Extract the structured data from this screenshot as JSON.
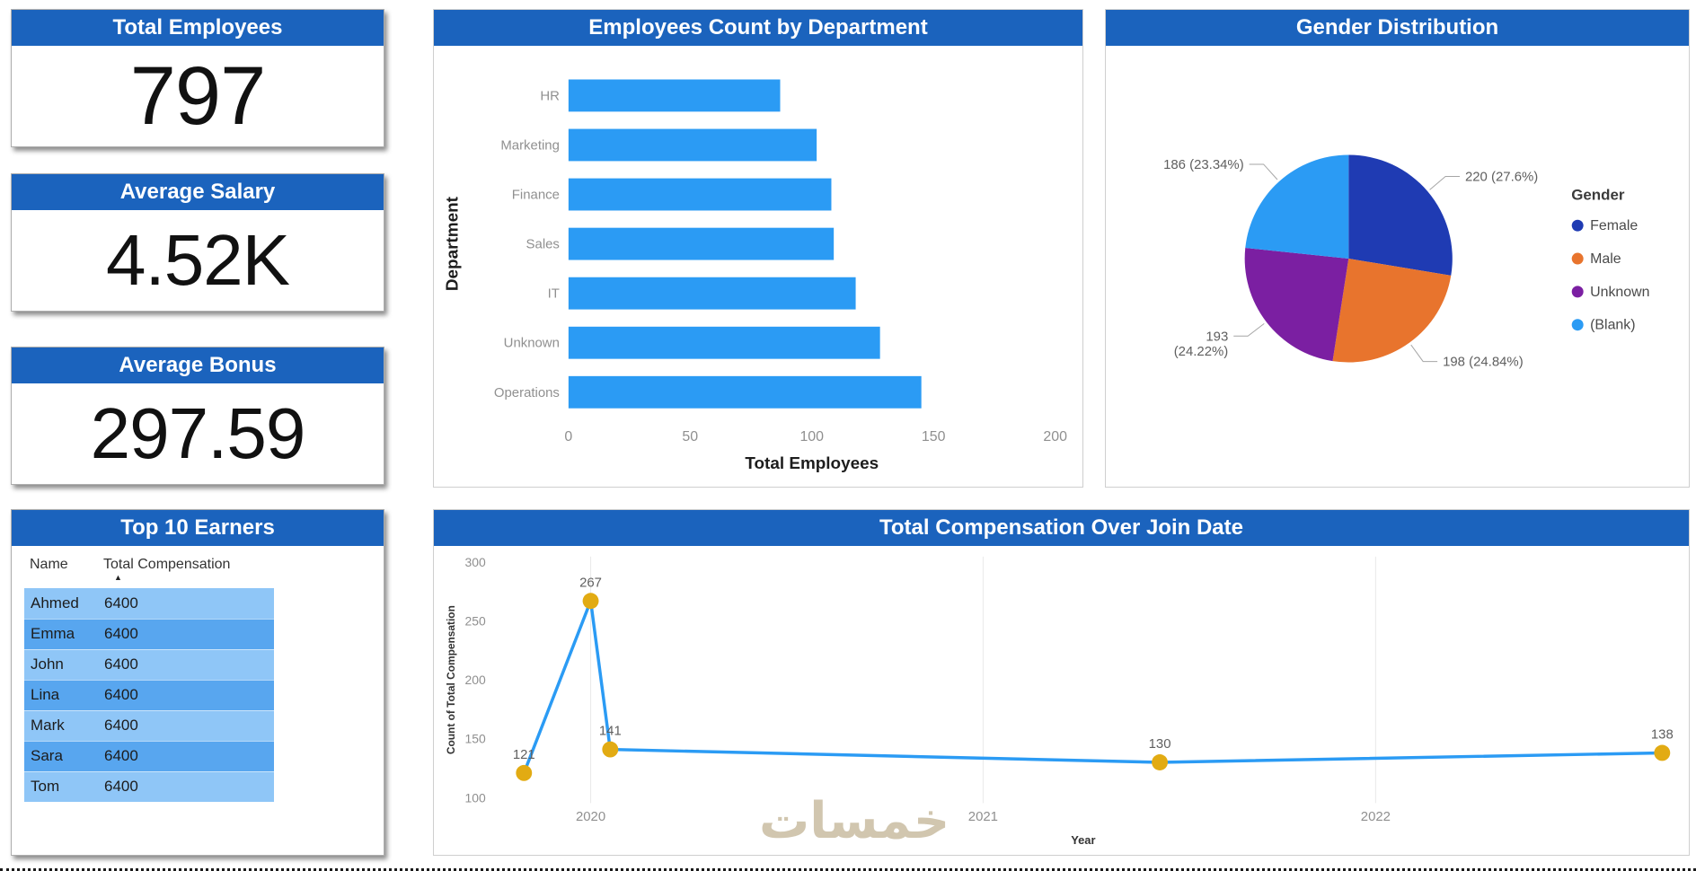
{
  "page": {
    "watermark": "خمسات"
  },
  "colors": {
    "header_bg": "#1b63bd",
    "bar_blue": "#2b9bf4",
    "pie_female": "#1f3bb3",
    "pie_male": "#e8742d",
    "pie_unknown": "#7b1fa2",
    "pie_blank": "#2b9bf4",
    "line_blue": "#2b9bf4",
    "marker_gold": "#e2ab13",
    "row_light": "#8fc6f7",
    "row_dark": "#58a6ef",
    "watermark": "#c9bda2"
  },
  "kpi_cards": [
    {
      "title": "Total Employees",
      "value": "797"
    },
    {
      "title": "Average Salary",
      "value": "4.52K"
    },
    {
      "title": "Average Bonus",
      "value": "297.59"
    }
  ],
  "top_earners": {
    "title": "Top 10 Earners",
    "columns": [
      "Name",
      "Total Compensation"
    ],
    "sort_icon": "▲",
    "rows": [
      [
        "Ahmed",
        "6400"
      ],
      [
        "Emma",
        "6400"
      ],
      [
        "John",
        "6400"
      ],
      [
        "Lina",
        "6400"
      ],
      [
        "Mark",
        "6400"
      ],
      [
        "Sara",
        "6400"
      ],
      [
        "Tom",
        "6400"
      ]
    ]
  },
  "chart_data": [
    {
      "id": "dept_bar",
      "type": "bar",
      "orientation": "horizontal",
      "title": "Employees Count by Department",
      "categories": [
        "HR",
        "Marketing",
        "Finance",
        "Sales",
        "IT",
        "Unknown",
        "Operations"
      ],
      "values": [
        87,
        102,
        108,
        109,
        118,
        128,
        145
      ],
      "xlabel": "Total Employees",
      "ylabel": "Department",
      "xlim": [
        0,
        200
      ],
      "xticks": [
        0,
        50,
        100,
        150,
        200
      ],
      "bar_color": "#2b9bf4"
    },
    {
      "id": "gender_pie",
      "type": "pie",
      "title": "Gender Distribution",
      "legend_title": "Gender",
      "legend_position": "right",
      "slices": [
        {
          "label": "Female",
          "value": 220,
          "pct": "27.6%",
          "color": "#1f3bb3",
          "callout": [
            "220 (27.6%)"
          ]
        },
        {
          "label": "Male",
          "value": 198,
          "pct": "24.84%",
          "color": "#e8742d",
          "callout": [
            "198 (24.84%)"
          ]
        },
        {
          "label": "Unknown",
          "value": 193,
          "pct": "24.22%",
          "color": "#7b1fa2",
          "callout": [
            "193",
            "(24.22%)"
          ]
        },
        {
          "label": "(Blank)",
          "value": 186,
          "pct": "23.34%",
          "color": "#2b9bf4",
          "callout": [
            "186 (23.34%)"
          ]
        }
      ]
    },
    {
      "id": "comp_line",
      "type": "line",
      "title": "Total Compensation Over Join Date",
      "xlabel": "Year",
      "ylabel": "Count of Total Compensation",
      "ylim": [
        100,
        300
      ],
      "yticks": [
        100,
        150,
        200,
        250,
        300
      ],
      "xlim": [
        2019.76,
        2022.75
      ],
      "xticks": [
        {
          "label": "2020",
          "x": 2020
        },
        {
          "label": "2021",
          "x": 2021
        },
        {
          "label": "2022",
          "x": 2022
        }
      ],
      "points": [
        {
          "x": 2019.83,
          "y": 121,
          "label": "121"
        },
        {
          "x": 2020.0,
          "y": 267,
          "label": "267"
        },
        {
          "x": 2020.05,
          "y": 141,
          "label": "141"
        },
        {
          "x": 2021.45,
          "y": 130,
          "label": "130"
        },
        {
          "x": 2022.73,
          "y": 138,
          "label": "138"
        }
      ],
      "grid": "vertical-faint",
      "line_color": "#2b9bf4",
      "marker_color": "#e2ab13"
    }
  ]
}
